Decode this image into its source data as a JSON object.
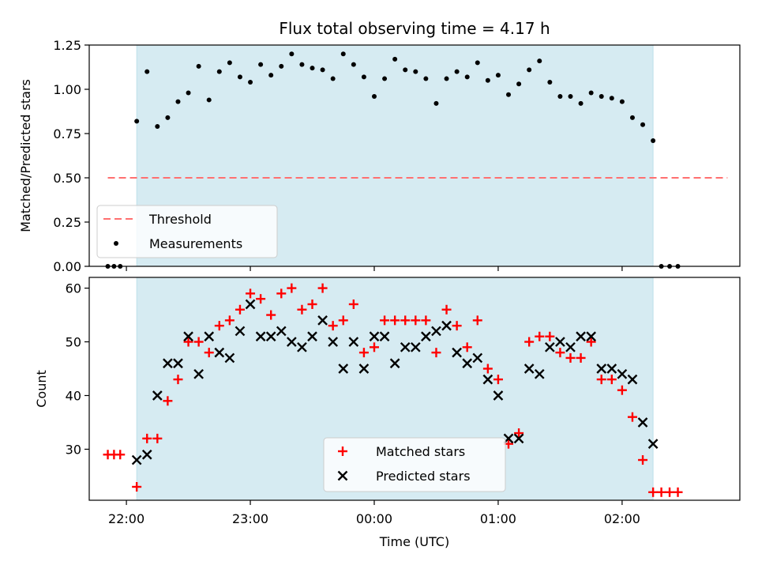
{
  "chart_data": [
    {
      "type": "scatter",
      "title": "Flux total observing time = 4.17 h",
      "xlabel": "",
      "ylabel": "Matched/Predicted stars",
      "xlim": [
        "21:42",
        "02:57"
      ],
      "ylim": [
        0,
        1.25
      ],
      "yticks": [
        0.0,
        0.25,
        0.5,
        0.75,
        1.0,
        1.25
      ],
      "ytick_labels": [
        "0.00",
        "0.25",
        "0.50",
        "0.75",
        "1.00",
        "1.25"
      ],
      "xticks": [
        "22:00",
        "23:00",
        "00:00",
        "01:00",
        "02:00"
      ],
      "show_xtick_labels": false,
      "highlight_span": {
        "x0": "22:05",
        "x1": "02:15",
        "color": "#add8e6"
      },
      "threshold": {
        "name": "Threshold",
        "y": 0.5,
        "x0": "21:51",
        "x1": "02:51",
        "color": "#ff7070",
        "style": "dashed"
      },
      "legend": {
        "position": "lower-left",
        "entries": [
          "Threshold",
          "Measurements"
        ]
      },
      "series": [
        {
          "name": "Measurements",
          "color": "#000000",
          "marker": "dot",
          "points": [
            {
              "x": "21:51",
              "y": 0.0
            },
            {
              "x": "21:54",
              "y": 0.0
            },
            {
              "x": "21:57",
              "y": 0.0
            },
            {
              "x": "22:05",
              "y": 0.82
            },
            {
              "x": "22:10",
              "y": 1.1
            },
            {
              "x": "22:15",
              "y": 0.79
            },
            {
              "x": "22:20",
              "y": 0.84
            },
            {
              "x": "22:25",
              "y": 0.93
            },
            {
              "x": "22:30",
              "y": 0.98
            },
            {
              "x": "22:35",
              "y": 1.13
            },
            {
              "x": "22:40",
              "y": 0.94
            },
            {
              "x": "22:45",
              "y": 1.1
            },
            {
              "x": "22:50",
              "y": 1.15
            },
            {
              "x": "22:55",
              "y": 1.07
            },
            {
              "x": "23:00",
              "y": 1.04
            },
            {
              "x": "23:05",
              "y": 1.14
            },
            {
              "x": "23:10",
              "y": 1.08
            },
            {
              "x": "23:15",
              "y": 1.13
            },
            {
              "x": "23:20",
              "y": 1.2
            },
            {
              "x": "23:25",
              "y": 1.14
            },
            {
              "x": "23:30",
              "y": 1.12
            },
            {
              "x": "23:35",
              "y": 1.11
            },
            {
              "x": "23:40",
              "y": 1.06
            },
            {
              "x": "23:45",
              "y": 1.2
            },
            {
              "x": "23:50",
              "y": 1.14
            },
            {
              "x": "23:55",
              "y": 1.07
            },
            {
              "x": "00:00",
              "y": 0.96
            },
            {
              "x": "00:05",
              "y": 1.06
            },
            {
              "x": "00:10",
              "y": 1.17
            },
            {
              "x": "00:15",
              "y": 1.11
            },
            {
              "x": "00:20",
              "y": 1.1
            },
            {
              "x": "00:25",
              "y": 1.06
            },
            {
              "x": "00:30",
              "y": 0.92
            },
            {
              "x": "00:35",
              "y": 1.06
            },
            {
              "x": "00:40",
              "y": 1.1
            },
            {
              "x": "00:45",
              "y": 1.07
            },
            {
              "x": "00:50",
              "y": 1.15
            },
            {
              "x": "00:55",
              "y": 1.05
            },
            {
              "x": "01:00",
              "y": 1.08
            },
            {
              "x": "01:05",
              "y": 0.97
            },
            {
              "x": "01:10",
              "y": 1.03
            },
            {
              "x": "01:15",
              "y": 1.11
            },
            {
              "x": "01:20",
              "y": 1.16
            },
            {
              "x": "01:25",
              "y": 1.04
            },
            {
              "x": "01:30",
              "y": 0.96
            },
            {
              "x": "01:35",
              "y": 0.96
            },
            {
              "x": "01:40",
              "y": 0.92
            },
            {
              "x": "01:45",
              "y": 0.98
            },
            {
              "x": "01:50",
              "y": 0.96
            },
            {
              "x": "01:55",
              "y": 0.95
            },
            {
              "x": "02:00",
              "y": 0.93
            },
            {
              "x": "02:05",
              "y": 0.84
            },
            {
              "x": "02:10",
              "y": 0.8
            },
            {
              "x": "02:15",
              "y": 0.71
            },
            {
              "x": "02:19",
              "y": 0.0
            },
            {
              "x": "02:23",
              "y": 0.0
            },
            {
              "x": "02:27",
              "y": 0.0
            }
          ]
        }
      ]
    },
    {
      "type": "scatter",
      "title": "",
      "xlabel": "Time (UTC)",
      "ylabel": "Count",
      "xlim": [
        "21:42",
        "02:57"
      ],
      "ylim": [
        20.5,
        62
      ],
      "yticks": [
        30,
        40,
        50,
        60
      ],
      "ytick_labels": [
        "30",
        "40",
        "50",
        "60"
      ],
      "xticks": [
        "22:00",
        "23:00",
        "00:00",
        "01:00",
        "02:00"
      ],
      "show_xtick_labels": true,
      "highlight_span": {
        "x0": "22:05",
        "x1": "02:15",
        "color": "#add8e6"
      },
      "legend": {
        "position": "lower-center",
        "entries": [
          "Matched stars",
          "Predicted stars"
        ]
      },
      "series": [
        {
          "name": "Matched stars",
          "color": "#ff0000",
          "marker": "plus",
          "points": [
            {
              "x": "21:51",
              "y": 29
            },
            {
              "x": "21:54",
              "y": 29
            },
            {
              "x": "21:57",
              "y": 29
            },
            {
              "x": "22:05",
              "y": 23
            },
            {
              "x": "22:10",
              "y": 32
            },
            {
              "x": "22:15",
              "y": 32
            },
            {
              "x": "22:20",
              "y": 39
            },
            {
              "x": "22:25",
              "y": 43
            },
            {
              "x": "22:30",
              "y": 50
            },
            {
              "x": "22:35",
              "y": 50
            },
            {
              "x": "22:40",
              "y": 48
            },
            {
              "x": "22:45",
              "y": 53
            },
            {
              "x": "22:50",
              "y": 54
            },
            {
              "x": "22:55",
              "y": 56
            },
            {
              "x": "23:00",
              "y": 59
            },
            {
              "x": "23:05",
              "y": 58
            },
            {
              "x": "23:10",
              "y": 55
            },
            {
              "x": "23:15",
              "y": 59
            },
            {
              "x": "23:20",
              "y": 60
            },
            {
              "x": "23:25",
              "y": 56
            },
            {
              "x": "23:30",
              "y": 57
            },
            {
              "x": "23:35",
              "y": 60
            },
            {
              "x": "23:40",
              "y": 53
            },
            {
              "x": "23:45",
              "y": 54
            },
            {
              "x": "23:50",
              "y": 57
            },
            {
              "x": "23:55",
              "y": 48
            },
            {
              "x": "00:00",
              "y": 49
            },
            {
              "x": "00:05",
              "y": 54
            },
            {
              "x": "00:10",
              "y": 54
            },
            {
              "x": "00:15",
              "y": 54
            },
            {
              "x": "00:20",
              "y": 54
            },
            {
              "x": "00:25",
              "y": 54
            },
            {
              "x": "00:30",
              "y": 48
            },
            {
              "x": "00:35",
              "y": 56
            },
            {
              "x": "00:40",
              "y": 53
            },
            {
              "x": "00:45",
              "y": 49
            },
            {
              "x": "00:50",
              "y": 54
            },
            {
              "x": "00:55",
              "y": 45
            },
            {
              "x": "01:00",
              "y": 43
            },
            {
              "x": "01:05",
              "y": 31
            },
            {
              "x": "01:10",
              "y": 33
            },
            {
              "x": "01:15",
              "y": 50
            },
            {
              "x": "01:20",
              "y": 51
            },
            {
              "x": "01:25",
              "y": 51
            },
            {
              "x": "01:30",
              "y": 48
            },
            {
              "x": "01:35",
              "y": 47
            },
            {
              "x": "01:40",
              "y": 47
            },
            {
              "x": "01:45",
              "y": 50
            },
            {
              "x": "01:50",
              "y": 43
            },
            {
              "x": "01:55",
              "y": 43
            },
            {
              "x": "02:00",
              "y": 41
            },
            {
              "x": "02:05",
              "y": 36
            },
            {
              "x": "02:10",
              "y": 28
            },
            {
              "x": "02:15",
              "y": 22
            },
            {
              "x": "02:19",
              "y": 22
            },
            {
              "x": "02:23",
              "y": 22
            },
            {
              "x": "02:27",
              "y": 22
            }
          ]
        },
        {
          "name": "Predicted stars",
          "color": "#000000",
          "marker": "cross",
          "points": [
            {
              "x": "22:05",
              "y": 28
            },
            {
              "x": "22:10",
              "y": 29
            },
            {
              "x": "22:15",
              "y": 40
            },
            {
              "x": "22:20",
              "y": 46
            },
            {
              "x": "22:25",
              "y": 46
            },
            {
              "x": "22:30",
              "y": 51
            },
            {
              "x": "22:35",
              "y": 44
            },
            {
              "x": "22:40",
              "y": 51
            },
            {
              "x": "22:45",
              "y": 48
            },
            {
              "x": "22:50",
              "y": 47
            },
            {
              "x": "22:55",
              "y": 52
            },
            {
              "x": "23:00",
              "y": 57
            },
            {
              "x": "23:05",
              "y": 51
            },
            {
              "x": "23:10",
              "y": 51
            },
            {
              "x": "23:15",
              "y": 52
            },
            {
              "x": "23:20",
              "y": 50
            },
            {
              "x": "23:25",
              "y": 49
            },
            {
              "x": "23:30",
              "y": 51
            },
            {
              "x": "23:35",
              "y": 54
            },
            {
              "x": "23:40",
              "y": 50
            },
            {
              "x": "23:45",
              "y": 45
            },
            {
              "x": "23:50",
              "y": 50
            },
            {
              "x": "23:55",
              "y": 45
            },
            {
              "x": "00:00",
              "y": 51
            },
            {
              "x": "00:05",
              "y": 51
            },
            {
              "x": "00:10",
              "y": 46
            },
            {
              "x": "00:15",
              "y": 49
            },
            {
              "x": "00:20",
              "y": 49
            },
            {
              "x": "00:25",
              "y": 51
            },
            {
              "x": "00:30",
              "y": 52
            },
            {
              "x": "00:35",
              "y": 53
            },
            {
              "x": "00:40",
              "y": 48
            },
            {
              "x": "00:45",
              "y": 46
            },
            {
              "x": "00:50",
              "y": 47
            },
            {
              "x": "00:55",
              "y": 43
            },
            {
              "x": "01:00",
              "y": 40
            },
            {
              "x": "01:05",
              "y": 32
            },
            {
              "x": "01:10",
              "y": 32
            },
            {
              "x": "01:15",
              "y": 45
            },
            {
              "x": "01:20",
              "y": 44
            },
            {
              "x": "01:25",
              "y": 49
            },
            {
              "x": "01:30",
              "y": 50
            },
            {
              "x": "01:35",
              "y": 49
            },
            {
              "x": "01:40",
              "y": 51
            },
            {
              "x": "01:45",
              "y": 51
            },
            {
              "x": "01:50",
              "y": 45
            },
            {
              "x": "01:55",
              "y": 45
            },
            {
              "x": "02:00",
              "y": 44
            },
            {
              "x": "02:05",
              "y": 43
            },
            {
              "x": "02:10",
              "y": 35
            },
            {
              "x": "02:15",
              "y": 31
            }
          ]
        }
      ]
    }
  ]
}
